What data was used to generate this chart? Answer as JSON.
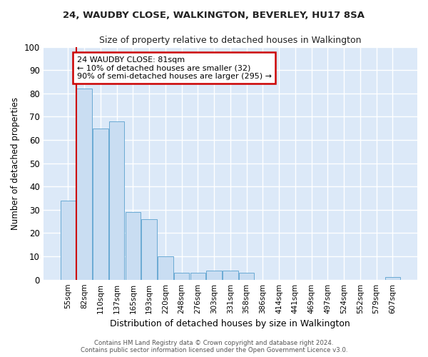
{
  "title1": "24, WAUDBY CLOSE, WALKINGTON, BEVERLEY, HU17 8SA",
  "title2": "Size of property relative to detached houses in Walkington",
  "xlabel": "Distribution of detached houses by size in Walkington",
  "ylabel": "Number of detached properties",
  "categories": [
    "55sqm",
    "82sqm",
    "110sqm",
    "137sqm",
    "165sqm",
    "193sqm",
    "220sqm",
    "248sqm",
    "276sqm",
    "303sqm",
    "331sqm",
    "358sqm",
    "386sqm",
    "414sqm",
    "441sqm",
    "469sqm",
    "497sqm",
    "524sqm",
    "552sqm",
    "579sqm",
    "607sqm"
  ],
  "values": [
    34,
    82,
    65,
    68,
    29,
    26,
    10,
    3,
    3,
    4,
    4,
    3,
    0,
    0,
    0,
    0,
    0,
    0,
    0,
    0,
    1
  ],
  "bar_color": "#c9ddf2",
  "bar_edge_color": "#6aaad4",
  "background_color": "#dce9f8",
  "grid_color": "#ffffff",
  "annotation_title": "24 WAUDBY CLOSE: 81sqm",
  "annotation_line1": "← 10% of detached houses are smaller (32)",
  "annotation_line2": "90% of semi-detached houses are larger (295) →",
  "annotation_box_color": "#ffffff",
  "annotation_border_color": "#cc0000",
  "vline_color": "#cc0000",
  "footer1": "Contains HM Land Registry data © Crown copyright and database right 2024.",
  "footer2": "Contains public sector information licensed under the Open Government Licence v3.0.",
  "ylim": [
    0,
    100
  ],
  "fig_bg": "#ffffff"
}
